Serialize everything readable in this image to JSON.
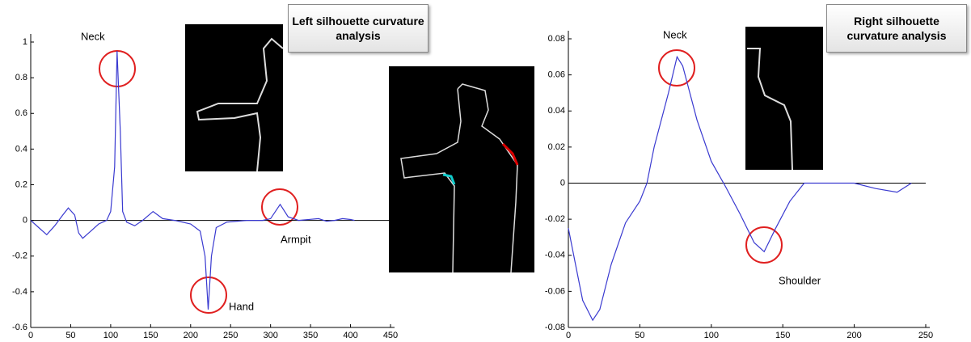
{
  "chart_data": [
    {
      "type": "line",
      "title": "Left silhouette curvature analysis",
      "x": [
        0,
        10,
        20,
        30,
        40,
        47,
        55,
        60,
        65,
        75,
        85,
        95,
        100,
        105,
        108,
        112,
        115,
        120,
        130,
        140,
        153,
        165,
        180,
        200,
        212,
        218,
        222,
        226,
        232,
        245,
        270,
        290,
        300,
        312,
        322,
        335,
        360,
        370,
        380,
        390,
        400,
        405
      ],
      "values": [
        0,
        -0.04,
        -0.08,
        -0.03,
        0.03,
        0.07,
        0.03,
        -0.07,
        -0.1,
        -0.06,
        -0.02,
        0,
        0.05,
        0.3,
        0.95,
        0.5,
        0.05,
        -0.01,
        -0.03,
        0,
        0.05,
        0.01,
        0,
        -0.02,
        -0.06,
        -0.2,
        -0.5,
        -0.2,
        -0.04,
        -0.01,
        0,
        0,
        0.01,
        0.09,
        0.02,
        0,
        0.01,
        -0.005,
        0,
        0.01,
        0.005,
        0
      ],
      "color": "#3a3ad0",
      "xlim": [
        0,
        450
      ],
      "ylim": [
        -0.6,
        1
      ],
      "xticks": [
        0,
        50,
        100,
        150,
        200,
        250,
        300,
        350,
        400,
        450
      ],
      "yticks": [
        -0.6,
        -0.4,
        -0.2,
        0,
        0.2,
        0.4,
        0.6,
        0.8,
        1
      ],
      "annotations": [
        "Neck",
        "Hand",
        "Armpit"
      ]
    },
    {
      "type": "line",
      "title": "Right silhouette curvature analysis",
      "x": [
        0,
        5,
        10,
        17,
        22,
        30,
        40,
        50,
        55,
        60,
        70,
        76,
        80,
        90,
        100,
        110,
        120,
        130,
        137,
        145,
        155,
        165,
        175,
        185,
        200,
        215,
        230,
        240
      ],
      "values": [
        -0.025,
        -0.045,
        -0.065,
        -0.076,
        -0.07,
        -0.045,
        -0.022,
        -0.01,
        0,
        0.02,
        0.05,
        0.07,
        0.065,
        0.035,
        0.012,
        -0.002,
        -0.017,
        -0.033,
        -0.038,
        -0.025,
        -0.01,
        0,
        0,
        0,
        0,
        -0.003,
        -0.005,
        0
      ],
      "color": "#3a3ad0",
      "xlim": [
        0,
        250
      ],
      "ylim": [
        -0.08,
        0.08
      ],
      "xticks": [
        0,
        50,
        100,
        150,
        200,
        250
      ],
      "yticks": [
        -0.08,
        -0.06,
        -0.04,
        -0.02,
        0,
        0.02,
        0.04,
        0.06,
        0.08
      ],
      "annotations": [
        "Neck",
        "Shoulder"
      ]
    }
  ]
}
